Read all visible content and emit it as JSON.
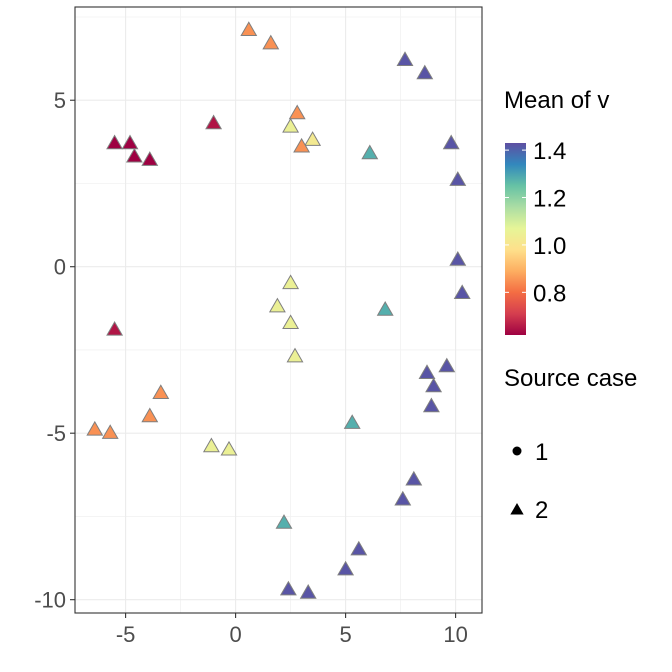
{
  "chart_data": {
    "type": "scatter",
    "title": "",
    "xlabel": "",
    "ylabel": "",
    "xlim": [
      -7.3,
      11.2
    ],
    "ylim": [
      -10.4,
      7.8
    ],
    "x_ticks": [
      -5,
      0,
      5,
      10
    ],
    "x_tick_labels": [
      "-5",
      "0",
      "5",
      "10"
    ],
    "y_ticks": [
      5,
      0,
      -5,
      -10
    ],
    "y_tick_labels": [
      "5",
      "0",
      "-5",
      "-10"
    ],
    "grid": true,
    "color_legend": {
      "title": "Mean of v",
      "min": 0.62,
      "max": 1.43,
      "ticks": [
        1.4,
        1.2,
        1.0,
        0.8
      ],
      "tick_labels": [
        "1.4",
        "1.2",
        "1.0",
        "0.8"
      ],
      "palette": [
        "#5E4FA2",
        "#3288BD",
        "#66C2A5",
        "#ABDDA4",
        "#E6F598",
        "#FEE08B",
        "#FDAE61",
        "#F46D43",
        "#D53E4F",
        "#9E0142"
      ]
    },
    "shape_legend": {
      "title": "Source case",
      "items": [
        {
          "label": "1",
          "shape": "circle"
        },
        {
          "label": "2",
          "shape": "triangle"
        }
      ]
    },
    "points": [
      {
        "x": 0.6,
        "y": 7.1,
        "v": 0.85
      },
      {
        "x": 1.6,
        "y": 6.7,
        "v": 0.85
      },
      {
        "x": 7.7,
        "y": 6.2,
        "v": 1.42
      },
      {
        "x": 8.6,
        "y": 5.8,
        "v": 1.42
      },
      {
        "x": 2.8,
        "y": 4.6,
        "v": 0.85
      },
      {
        "x": 2.5,
        "y": 4.2,
        "v": 1.05
      },
      {
        "x": -1.0,
        "y": 4.3,
        "v": 0.65
      },
      {
        "x": 3.5,
        "y": 3.8,
        "v": 1.02
      },
      {
        "x": 3.0,
        "y": 3.6,
        "v": 0.85
      },
      {
        "x": -5.5,
        "y": 3.7,
        "v": 0.62
      },
      {
        "x": -4.8,
        "y": 3.7,
        "v": 0.62
      },
      {
        "x": -4.6,
        "y": 3.3,
        "v": 0.62
      },
      {
        "x": -3.9,
        "y": 3.2,
        "v": 0.62
      },
      {
        "x": 6.1,
        "y": 3.4,
        "v": 1.28
      },
      {
        "x": 9.8,
        "y": 3.7,
        "v": 1.42
      },
      {
        "x": 10.1,
        "y": 2.6,
        "v": 1.42
      },
      {
        "x": 10.1,
        "y": 0.2,
        "v": 1.42
      },
      {
        "x": 10.3,
        "y": -0.8,
        "v": 1.42
      },
      {
        "x": 2.5,
        "y": -0.5,
        "v": 1.05
      },
      {
        "x": 1.9,
        "y": -1.2,
        "v": 1.05
      },
      {
        "x": 2.5,
        "y": -1.7,
        "v": 1.05
      },
      {
        "x": -5.5,
        "y": -1.9,
        "v": 0.65
      },
      {
        "x": 6.8,
        "y": -1.3,
        "v": 1.28
      },
      {
        "x": 2.7,
        "y": -2.7,
        "v": 1.05
      },
      {
        "x": 9.6,
        "y": -3.0,
        "v": 1.42
      },
      {
        "x": 8.7,
        "y": -3.2,
        "v": 1.42
      },
      {
        "x": 9.0,
        "y": -3.6,
        "v": 1.42
      },
      {
        "x": 8.9,
        "y": -4.2,
        "v": 1.42
      },
      {
        "x": -3.4,
        "y": -3.8,
        "v": 0.85
      },
      {
        "x": -3.9,
        "y": -4.5,
        "v": 0.85
      },
      {
        "x": 5.3,
        "y": -4.7,
        "v": 1.28
      },
      {
        "x": -6.4,
        "y": -4.9,
        "v": 0.85
      },
      {
        "x": -5.7,
        "y": -5.0,
        "v": 0.85
      },
      {
        "x": -1.1,
        "y": -5.4,
        "v": 1.05
      },
      {
        "x": -0.3,
        "y": -5.5,
        "v": 1.05
      },
      {
        "x": 8.1,
        "y": -6.4,
        "v": 1.42
      },
      {
        "x": 7.6,
        "y": -7.0,
        "v": 1.42
      },
      {
        "x": 2.2,
        "y": -7.7,
        "v": 1.28
      },
      {
        "x": 5.6,
        "y": -8.5,
        "v": 1.42
      },
      {
        "x": 5.0,
        "y": -9.1,
        "v": 1.42
      },
      {
        "x": 2.4,
        "y": -9.7,
        "v": 1.42
      },
      {
        "x": 3.3,
        "y": -9.8,
        "v": 1.42
      }
    ]
  }
}
